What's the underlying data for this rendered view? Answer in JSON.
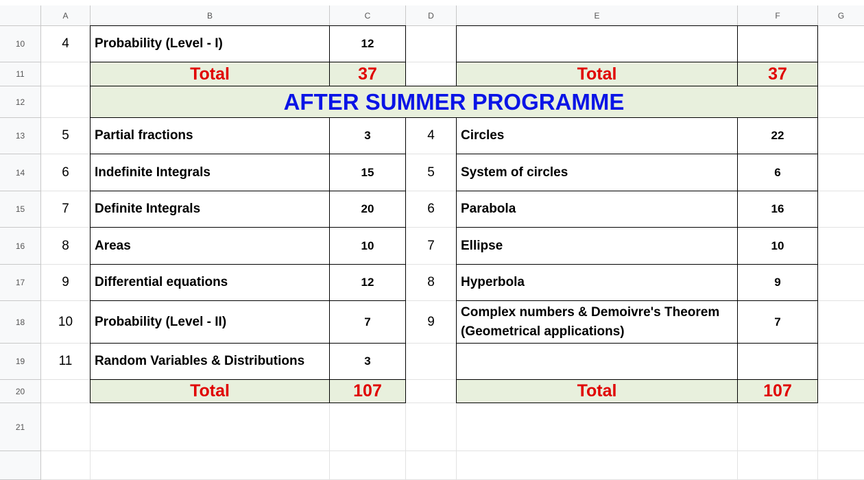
{
  "columns": [
    "A",
    "B",
    "C",
    "D",
    "E",
    "F",
    "G"
  ],
  "rows": [
    {
      "n": "10",
      "a": "4",
      "b": "Probability (Level - I)",
      "c": "12",
      "d": "",
      "e": "",
      "f": "",
      "type": "data"
    },
    {
      "n": "11",
      "a": "",
      "b": "Total",
      "c": "37",
      "d": "",
      "e": "Total",
      "f": "37",
      "type": "total"
    },
    {
      "n": "12",
      "a": "",
      "title": "AFTER SUMMER PROGRAMME",
      "type": "title"
    },
    {
      "n": "13",
      "a": "5",
      "b": "Partial fractions",
      "c": "3",
      "d": "4",
      "e": "Circles",
      "f": "22",
      "type": "data"
    },
    {
      "n": "14",
      "a": "6",
      "b": "Indefinite Integrals",
      "c": "15",
      "d": "5",
      "e": "System of circles",
      "f": "6",
      "type": "data"
    },
    {
      "n": "15",
      "a": "7",
      "b": "Definite Integrals",
      "c": "20",
      "d": "6",
      "e": "Parabola",
      "f": "16",
      "type": "data"
    },
    {
      "n": "16",
      "a": "8",
      "b": "Areas",
      "c": "10",
      "d": "7",
      "e": "Ellipse",
      "f": "10",
      "type": "data"
    },
    {
      "n": "17",
      "a": "9",
      "b": "Differential equations",
      "c": "12",
      "d": "8",
      "e": "Hyperbola",
      "f": "9",
      "type": "data"
    },
    {
      "n": "18",
      "a": "10",
      "b": "Probability (Level - II)",
      "c": "7",
      "d": "9",
      "e": "Complex numbers & Demoivre's Theorem  (Geometrical applications)",
      "f": "7",
      "type": "data"
    },
    {
      "n": "19",
      "a": "11",
      "b": "Random Variables & Distributions",
      "c": "3",
      "d": "",
      "e": "",
      "f": "",
      "type": "data"
    },
    {
      "n": "20",
      "a": "",
      "b": "Total",
      "c": "107",
      "d": "",
      "e": "Total",
      "f": "107",
      "type": "total"
    },
    {
      "n": "21",
      "type": "empty"
    },
    {
      "n": "",
      "type": "empty"
    }
  ],
  "colors": {
    "total_text": "#e00000",
    "title_text": "#0a14e6",
    "total_fill": "#e8f0dd"
  }
}
